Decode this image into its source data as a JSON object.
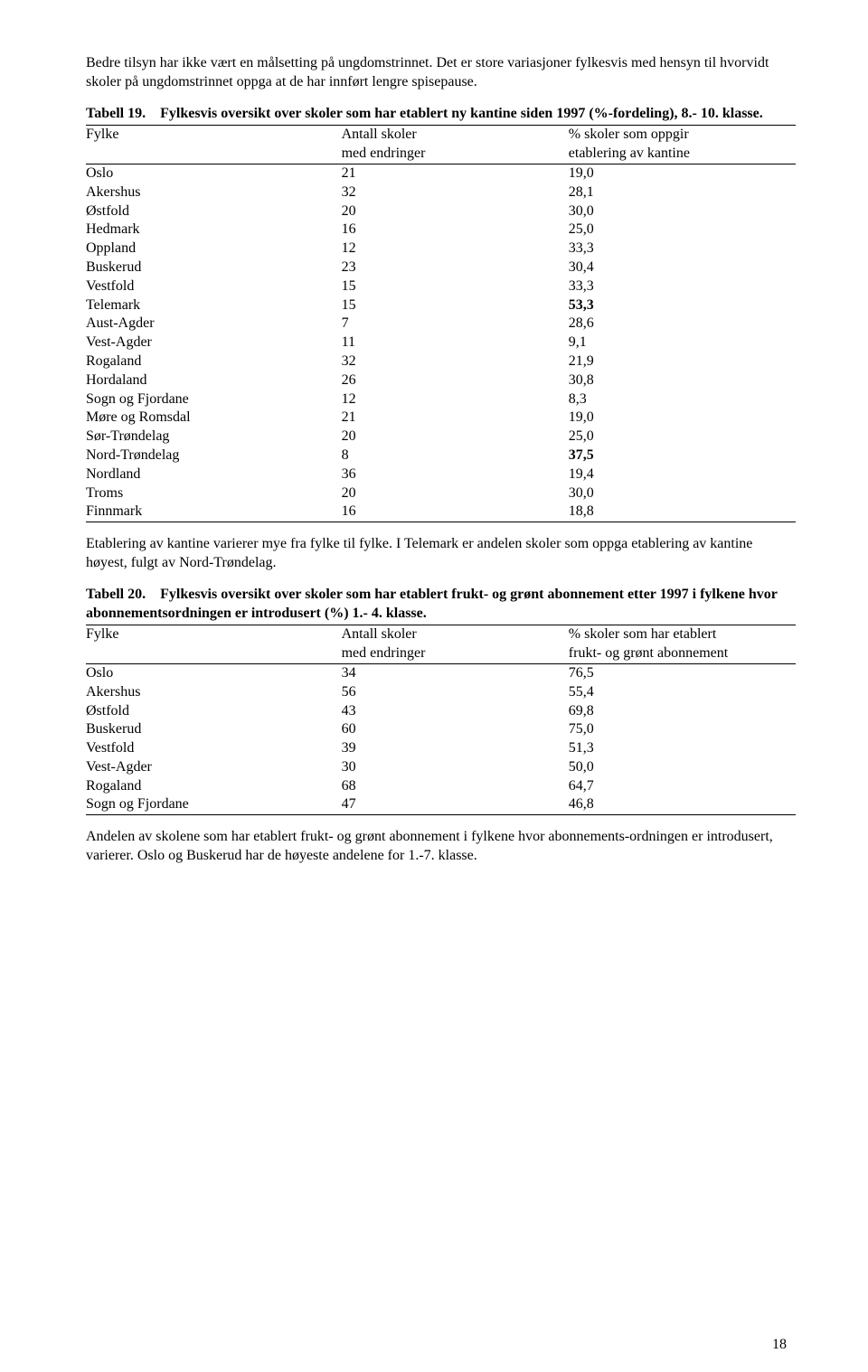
{
  "intro": "Bedre tilsyn har ikke vært en målsetting på ungdomstrinnet. Det er store variasjoner fylkesvis med hensyn til hvorvidt skoler på ungdomstrinnet oppga at de har innført lengre spisepause.",
  "table19": {
    "label": "Tabell 19.",
    "caption": "Fylkesvis oversikt over skoler som har etablert ny kantine siden 1997 (%-fordeling), 8.- 10. klasse.",
    "head": {
      "fylke": "Fylke",
      "antall1": "Antall skoler",
      "antall2": "med endringer",
      "pct1": "% skoler som oppgir",
      "pct2": "etablering av kantine"
    },
    "rows": [
      {
        "fylke": "Oslo",
        "antall": "21",
        "pct": "19,0"
      },
      {
        "fylke": "Akershus",
        "antall": "32",
        "pct": "28,1"
      },
      {
        "fylke": "Østfold",
        "antall": "20",
        "pct": "30,0"
      },
      {
        "fylke": "Hedmark",
        "antall": "16",
        "pct": "25,0"
      },
      {
        "fylke": "Oppland",
        "antall": "12",
        "pct": "33,3"
      },
      {
        "fylke": "Buskerud",
        "antall": "23",
        "pct": "30,4"
      },
      {
        "fylke": "Vestfold",
        "antall": "15",
        "pct": "33,3"
      },
      {
        "fylke": "Telemark",
        "antall": "15",
        "pct": "53,3",
        "bold": true
      },
      {
        "fylke": "Aust-Agder",
        "antall": "7",
        "pct": "28,6"
      },
      {
        "fylke": "Vest-Agder",
        "antall": "11",
        "pct": "9,1"
      },
      {
        "fylke": "Rogaland",
        "antall": "32",
        "pct": "21,9"
      },
      {
        "fylke": "Hordaland",
        "antall": "26",
        "pct": "30,8"
      },
      {
        "fylke": "Sogn og Fjordane",
        "antall": "12",
        "pct": "8,3"
      },
      {
        "fylke": "Møre og Romsdal",
        "antall": "21",
        "pct": "19,0"
      },
      {
        "fylke": "Sør-Trøndelag",
        "antall": "20",
        "pct": "25,0"
      },
      {
        "fylke": "Nord-Trøndelag",
        "antall": "8",
        "pct": "37,5",
        "bold": true
      },
      {
        "fylke": "Nordland",
        "antall": "36",
        "pct": "19,4"
      },
      {
        "fylke": "Troms",
        "antall": "20",
        "pct": "30,0"
      },
      {
        "fylke": "Finnmark",
        "antall": "16",
        "pct": "18,8"
      }
    ]
  },
  "middle": "Etablering av kantine varierer mye fra fylke til fylke.  I Telemark er andelen skoler som oppga etablering av kantine høyest, fulgt av Nord-Trøndelag.",
  "table20": {
    "label": "Tabell 20.",
    "caption": "Fylkesvis oversikt over skoler som har etablert frukt- og grønt abonnement etter 1997 i fylkene hvor abonnementsordningen er introdusert (%) 1.- 4. klasse.",
    "head": {
      "fylke": "Fylke",
      "antall1": "Antall skoler",
      "antall2": "med endringer",
      "pct1": "% skoler som har etablert",
      "pct2": "frukt- og grønt abonnement"
    },
    "rows": [
      {
        "fylke": "Oslo",
        "antall": "34",
        "pct": "76,5"
      },
      {
        "fylke": "Akershus",
        "antall": "56",
        "pct": "55,4"
      },
      {
        "fylke": "Østfold",
        "antall": "43",
        "pct": "69,8"
      },
      {
        "fylke": "Buskerud",
        "antall": "60",
        "pct": "75,0"
      },
      {
        "fylke": "Vestfold",
        "antall": "39",
        "pct": "51,3"
      },
      {
        "fylke": "Vest-Agder",
        "antall": "30",
        "pct": "50,0"
      },
      {
        "fylke": "Rogaland",
        "antall": "68",
        "pct": "64,7"
      },
      {
        "fylke": "Sogn og Fjordane",
        "antall": "47",
        "pct": "46,8"
      }
    ]
  },
  "outro": "Andelen av skolene som har etablert frukt- og grønt abonnement i fylkene hvor abonnements-ordningen er introdusert, varierer. Oslo og Buskerud har de høyeste andelene for 1.-7. klasse.",
  "pagenum": "18"
}
